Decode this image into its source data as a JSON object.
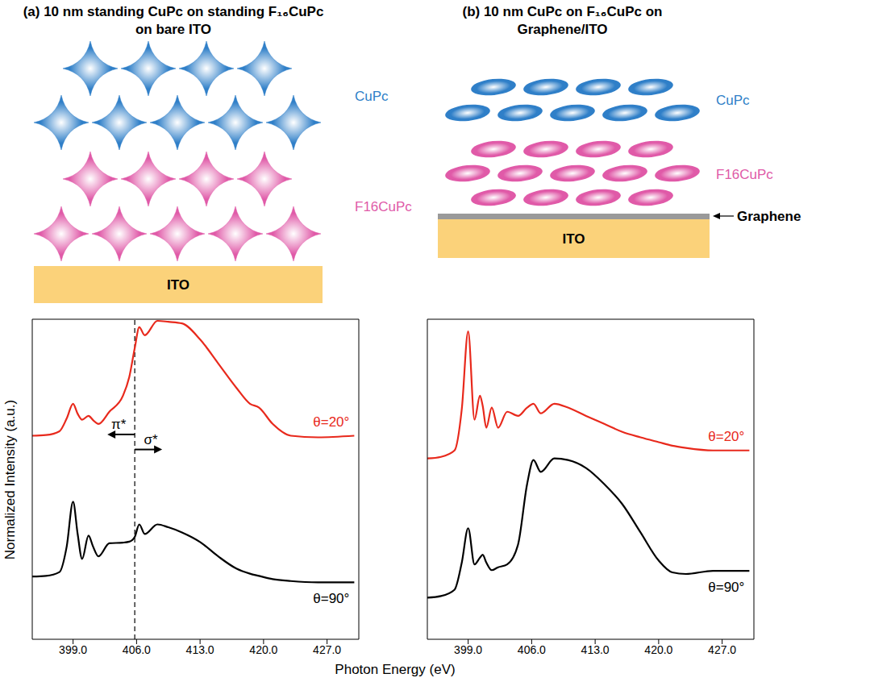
{
  "figure": {
    "ylabel": "Normalized Intensity (a.u.)",
    "xlabel": "Photon Energy (eV)"
  },
  "panels": [
    {
      "title": "(a) 10 nm standing CuPc on standing F₁₆CuPc on bare ITO",
      "diagram": {
        "standing": true,
        "layers": [
          {
            "label": "CuPc",
            "color": "#2f7fc8"
          },
          {
            "label": "F16CuPc",
            "color": "#e05aa8"
          }
        ],
        "substrate": "ITO"
      }
    },
    {
      "title": "(b) 10 nm CuPc on F₁₆CuPc on Graphene/ITO",
      "diagram": {
        "standing": false,
        "layers": [
          {
            "label": "CuPc",
            "color": "#2f7fc8"
          },
          {
            "label": "F16CuPc",
            "color": "#e05aa8"
          }
        ],
        "interlayer": "Graphene",
        "substrate": "ITO"
      }
    }
  ],
  "chart_data": [
    {
      "type": "line",
      "x": [
        394.5,
        396,
        397.5,
        398.3,
        399,
        399.5,
        400,
        400.7,
        401.2,
        401.8,
        403,
        404.5,
        405.2,
        405.8,
        406.3,
        406.9,
        408.3,
        409.5,
        411,
        413,
        415,
        417,
        418.5,
        419.5,
        421,
        423,
        426,
        430
      ],
      "series": [
        {
          "name": "θ=20°",
          "color": "#e8291c",
          "values": [
            6.36,
            6.38,
            6.5,
            6.9,
            7.36,
            7.05,
            6.86,
            6.98,
            6.85,
            6.73,
            7.11,
            7.61,
            8.2,
            9.1,
            9.75,
            9.5,
            9.95,
            9.92,
            9.87,
            9.37,
            8.62,
            7.86,
            7.36,
            7.24,
            6.73,
            6.36,
            6.31,
            6.36
          ]
        },
        {
          "name": "θ=90°",
          "color": "#000000",
          "values": [
            1.96,
            1.98,
            2.1,
            2.9,
            4.3,
            3.3,
            2.51,
            3.24,
            2.9,
            2.59,
            3.0,
            3.02,
            3.05,
            3.2,
            3.59,
            3.29,
            3.59,
            3.5,
            3.34,
            3.04,
            2.59,
            2.21,
            2.05,
            1.98,
            1.88,
            1.82,
            1.78,
            1.78
          ]
        }
      ],
      "xlim": [
        394.5,
        430.5
      ],
      "xticks": [
        {
          "value": 399,
          "label": "399.0"
        },
        {
          "value": 406,
          "label": "406.0"
        },
        {
          "value": 413,
          "label": "413.0"
        },
        {
          "value": 420,
          "label": "420.0"
        },
        {
          "value": 427,
          "label": "427.0"
        }
      ],
      "ylim": [
        0,
        10
      ],
      "tick_labels": "x",
      "vlines": [
        {
          "x": 405.8,
          "line_style": "dashed"
        }
      ],
      "annotations": [
        {
          "text": "π*",
          "x": 405.8,
          "y": 6.4,
          "arrow": "left"
        },
        {
          "text": "σ*",
          "x": 405.8,
          "y": 5.93,
          "arrow": "right"
        }
      ]
    },
    {
      "type": "line",
      "x": [
        394.5,
        396,
        397.5,
        398.3,
        399,
        399.7,
        400.3,
        400.6,
        401.0,
        401.6,
        402.3,
        403.3,
        404.5,
        405.5,
        406.2,
        407,
        408.5,
        410,
        412,
        414,
        416,
        418,
        420,
        421.5,
        423,
        426,
        430
      ],
      "series": [
        {
          "name": "θ=20°",
          "color": "#e8291c",
          "values": [
            5.65,
            5.7,
            5.9,
            7.2,
            9.62,
            6.86,
            7.61,
            7.3,
            6.61,
            7.24,
            6.61,
            7.11,
            6.98,
            7.24,
            7.36,
            7.06,
            7.36,
            7.24,
            6.98,
            6.73,
            6.48,
            6.31,
            6.16,
            6.05,
            5.98,
            5.9,
            5.9
          ]
        },
        {
          "name": "θ=90°",
          "color": "#000000",
          "values": [
            1.3,
            1.35,
            1.55,
            2.4,
            3.47,
            2.34,
            2.55,
            2.64,
            2.4,
            2.16,
            2.25,
            2.34,
            2.96,
            4.85,
            5.6,
            5.23,
            5.65,
            5.6,
            5.35,
            4.85,
            4.22,
            3.34,
            2.46,
            2.09,
            2.04,
            2.14,
            2.14
          ]
        }
      ],
      "xlim": [
        394.5,
        430.5
      ],
      "xticks": [
        {
          "value": 399,
          "label": "399.0"
        },
        {
          "value": 406,
          "label": "406.0"
        },
        {
          "value": 413,
          "label": "413.0"
        },
        {
          "value": 420,
          "label": "420.0"
        },
        {
          "value": 427,
          "label": "427.0"
        }
      ],
      "ylim": [
        0,
        10
      ],
      "tick_labels": "x"
    }
  ]
}
